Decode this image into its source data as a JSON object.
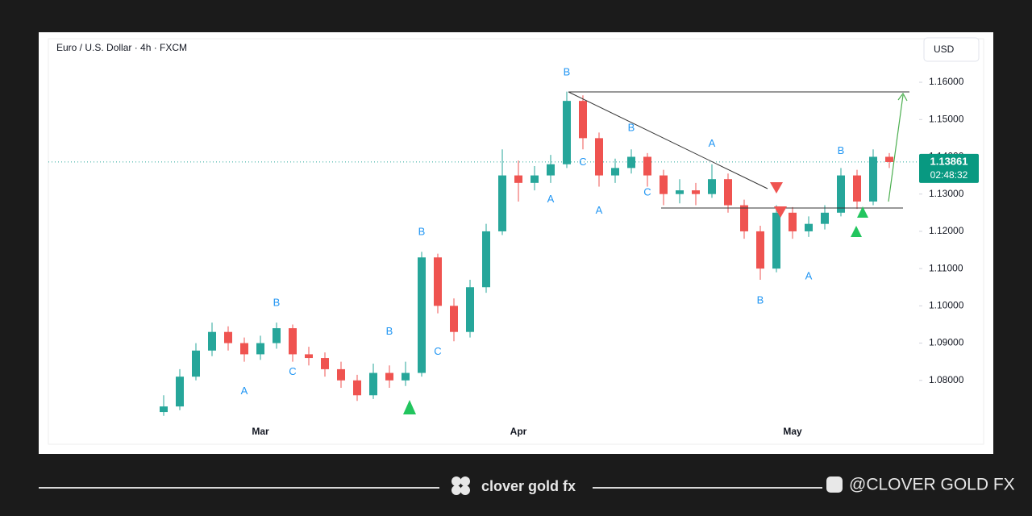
{
  "chart_data": {
    "type": "candlestick",
    "title": "Euro / U.S. Dollar · 4h · FXCM",
    "categories": [
      null,
      null,
      null,
      null,
      null,
      null,
      null,
      null,
      "Mar",
      null,
      null,
      null,
      null,
      null,
      null,
      null,
      null,
      null,
      null,
      null,
      null,
      null,
      null,
      null,
      "Apr",
      null,
      null,
      null,
      null,
      null,
      null,
      null,
      null,
      null,
      null,
      null,
      null,
      null,
      null,
      null,
      null,
      "May",
      null,
      null,
      null,
      null,
      null,
      null
    ],
    "open": [
      null,
      null,
      1.0715,
      1.073,
      1.081,
      1.088,
      1.093,
      1.09,
      1.087,
      1.09,
      1.094,
      1.087,
      1.086,
      1.083,
      1.08,
      1.076,
      1.082,
      1.08,
      1.082,
      1.113,
      1.1,
      1.093,
      1.105,
      1.12,
      1.135,
      1.133,
      1.135,
      1.138,
      1.155,
      1.145,
      1.135,
      1.137,
      1.14,
      1.135,
      1.13,
      1.131,
      1.13,
      1.134,
      1.127,
      1.12,
      1.11,
      1.125,
      1.12,
      1.122,
      1.125,
      1.135,
      1.128,
      1.14
    ],
    "high": [
      null,
      null,
      1.076,
      1.083,
      1.09,
      1.0955,
      1.0945,
      1.0915,
      1.092,
      1.0955,
      1.095,
      1.089,
      1.0875,
      1.085,
      1.0815,
      1.0845,
      1.084,
      1.085,
      1.1145,
      1.114,
      1.102,
      1.107,
      1.122,
      1.142,
      1.139,
      1.1375,
      1.1405,
      1.1575,
      1.1565,
      1.1465,
      1.1395,
      1.142,
      1.141,
      1.1365,
      1.134,
      1.133,
      1.138,
      1.1355,
      1.1285,
      1.1215,
      1.127,
      1.1265,
      1.124,
      1.127,
      1.137,
      1.1365,
      1.142,
      1.141
    ],
    "low": [
      null,
      null,
      1.0705,
      1.072,
      1.08,
      1.0865,
      1.088,
      1.085,
      1.0855,
      1.0885,
      1.085,
      1.084,
      1.081,
      1.078,
      1.0745,
      1.075,
      1.078,
      1.0785,
      1.081,
      1.098,
      1.0905,
      1.0915,
      1.1035,
      1.119,
      1.128,
      1.131,
      1.133,
      1.137,
      1.142,
      1.132,
      1.133,
      1.1355,
      1.132,
      1.127,
      1.1275,
      1.127,
      1.129,
      1.125,
      1.118,
      1.107,
      1.109,
      1.118,
      1.1185,
      1.1205,
      1.124,
      1.126,
      1.127,
      1.137
    ],
    "close": [
      null,
      null,
      1.073,
      1.081,
      1.088,
      1.093,
      1.09,
      1.087,
      1.09,
      1.094,
      1.087,
      1.086,
      1.083,
      1.08,
      1.076,
      1.082,
      1.08,
      1.082,
      1.113,
      1.1,
      1.093,
      1.105,
      1.12,
      1.135,
      1.133,
      1.135,
      1.138,
      1.155,
      1.145,
      1.135,
      1.137,
      1.14,
      1.135,
      1.13,
      1.131,
      1.13,
      1.134,
      1.127,
      1.12,
      1.11,
      1.125,
      1.12,
      1.122,
      1.125,
      1.135,
      1.128,
      1.14,
      1.1386
    ],
    "up_color": "#26a69a",
    "down_color": "#ef5350",
    "ylim": [
      1.07,
      1.1665
    ],
    "yticks": [
      {
        "value": 1.08,
        "label": "1.08000"
      },
      {
        "value": 1.09,
        "label": "1.09000"
      },
      {
        "value": 1.1,
        "label": "1.10000"
      },
      {
        "value": 1.11,
        "label": "1.11000"
      },
      {
        "value": 1.12,
        "label": "1.12000"
      },
      {
        "value": 1.13,
        "label": "1.13000"
      },
      {
        "value": 1.14,
        "label": "1.14000"
      },
      {
        "value": 1.15,
        "label": "1.15000"
      },
      {
        "value": 1.16,
        "label": "1.16000"
      }
    ],
    "grid": false,
    "last_price": 1.13861,
    "annotation_color": "#2196f3",
    "annotations": [
      {
        "label": "B",
        "index": 27,
        "price": 1.1626
      },
      {
        "label": "B",
        "index": 18,
        "price": 1.1197
      },
      {
        "label": "B",
        "index": 9,
        "price": 1.1007
      },
      {
        "label": "C",
        "index": 10,
        "price": 1.0822
      },
      {
        "label": "A",
        "index": 7,
        "price": 1.077
      },
      {
        "label": "B",
        "index": 16,
        "price": 1.093
      },
      {
        "label": "C",
        "index": 19,
        "price": 1.0876
      },
      {
        "label": "A",
        "index": 26,
        "price": 1.1285
      },
      {
        "label": "A",
        "index": 29,
        "price": 1.1255
      },
      {
        "label": "C",
        "index": 28,
        "price": 1.1385
      },
      {
        "label": "B",
        "index": 31,
        "price": 1.1477
      },
      {
        "label": "C",
        "index": 32,
        "price": 1.1303
      },
      {
        "label": "A",
        "index": 36,
        "price": 1.1434
      },
      {
        "label": "B",
        "index": 39,
        "price": 1.1014
      },
      {
        "label": "A",
        "index": 42,
        "price": 1.1078
      },
      {
        "label": "B",
        "index": 44,
        "price": 1.1415
      }
    ]
  },
  "currency": "USD",
  "countdown": "02:48:32",
  "brand": "clover gold fx",
  "handle": "@CLOVER GOLD FX"
}
